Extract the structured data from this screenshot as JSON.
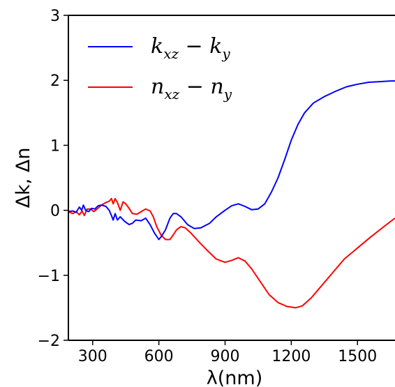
{
  "chart_data": {
    "type": "line",
    "xlabel": "λ(nm)",
    "ylabel": "Δk, Δn",
    "xlim": [
      190,
      1670
    ],
    "ylim": [
      -2,
      3
    ],
    "xticks": [
      300,
      600,
      900,
      1200,
      1500
    ],
    "xtick_labels": [
      "300",
      "600",
      "900",
      "1200",
      "1500"
    ],
    "yticks": [
      -2,
      -1,
      0,
      1,
      2,
      3
    ],
    "ytick_labels": [
      "−2",
      "−1",
      "0",
      "1",
      "2",
      "3"
    ],
    "legend_position": "top-left",
    "grid": false,
    "series": [
      {
        "name": "k_xz − k_y",
        "legend": {
          "main1": "k",
          "sub1": "xz",
          "op": " − ",
          "main2": "k",
          "sub2": "y"
        },
        "color": "#0000ff",
        "points": [
          [
            190,
            -0.02
          ],
          [
            210,
            -0.01
          ],
          [
            225,
            -0.03
          ],
          [
            240,
            0.05
          ],
          [
            250,
            0.0
          ],
          [
            258,
            0.08
          ],
          [
            268,
            0.0
          ],
          [
            282,
            -0.02
          ],
          [
            295,
            0.03
          ],
          [
            310,
            0.02
          ],
          [
            325,
            0.07
          ],
          [
            340,
            0.08
          ],
          [
            360,
            0.06
          ],
          [
            375,
            0.0
          ],
          [
            385,
            -0.08
          ],
          [
            393,
            -0.15
          ],
          [
            402,
            -0.05
          ],
          [
            412,
            -0.15
          ],
          [
            425,
            -0.1
          ],
          [
            445,
            -0.17
          ],
          [
            465,
            -0.22
          ],
          [
            480,
            -0.2
          ],
          [
            495,
            -0.15
          ],
          [
            520,
            -0.16
          ],
          [
            540,
            -0.12
          ],
          [
            560,
            -0.22
          ],
          [
            580,
            -0.35
          ],
          [
            600,
            -0.45
          ],
          [
            612,
            -0.4
          ],
          [
            630,
            -0.3
          ],
          [
            650,
            -0.12
          ],
          [
            665,
            -0.05
          ],
          [
            680,
            -0.05
          ],
          [
            700,
            -0.1
          ],
          [
            730,
            -0.22
          ],
          [
            760,
            -0.28
          ],
          [
            790,
            -0.27
          ],
          [
            830,
            -0.2
          ],
          [
            860,
            -0.1
          ],
          [
            900,
            0.0
          ],
          [
            930,
            0.07
          ],
          [
            960,
            0.1
          ],
          [
            990,
            0.06
          ],
          [
            1020,
            0.01
          ],
          [
            1050,
            0.02
          ],
          [
            1080,
            0.1
          ],
          [
            1110,
            0.28
          ],
          [
            1140,
            0.5
          ],
          [
            1170,
            0.78
          ],
          [
            1200,
            1.08
          ],
          [
            1230,
            1.32
          ],
          [
            1260,
            1.5
          ],
          [
            1300,
            1.65
          ],
          [
            1350,
            1.75
          ],
          [
            1400,
            1.83
          ],
          [
            1450,
            1.9
          ],
          [
            1500,
            1.94
          ],
          [
            1550,
            1.97
          ],
          [
            1600,
            1.98
          ],
          [
            1650,
            1.99
          ],
          [
            1670,
            1.99
          ]
        ]
      },
      {
        "name": "n_xz − n_y",
        "legend": {
          "main1": "n",
          "sub1": "xz",
          "op": " − ",
          "main2": "n",
          "sub2": "y"
        },
        "color": "#ff0000",
        "points": [
          [
            190,
            -0.02
          ],
          [
            210,
            -0.05
          ],
          [
            225,
            -0.02
          ],
          [
            240,
            -0.07
          ],
          [
            252,
            -0.01
          ],
          [
            262,
            -0.08
          ],
          [
            275,
            0.02
          ],
          [
            290,
            0.02
          ],
          [
            305,
            -0.02
          ],
          [
            320,
            0.02
          ],
          [
            340,
            0.08
          ],
          [
            360,
            0.12
          ],
          [
            375,
            0.14
          ],
          [
            385,
            0.18
          ],
          [
            393,
            0.1
          ],
          [
            402,
            0.18
          ],
          [
            412,
            0.12
          ],
          [
            425,
            0.0
          ],
          [
            438,
            0.13
          ],
          [
            450,
            0.1
          ],
          [
            465,
            0.03
          ],
          [
            480,
            -0.05
          ],
          [
            500,
            -0.06
          ],
          [
            520,
            -0.02
          ],
          [
            540,
            0.02
          ],
          [
            560,
            -0.01
          ],
          [
            575,
            -0.1
          ],
          [
            590,
            -0.25
          ],
          [
            610,
            -0.38
          ],
          [
            630,
            -0.45
          ],
          [
            650,
            -0.45
          ],
          [
            665,
            -0.38
          ],
          [
            680,
            -0.3
          ],
          [
            700,
            -0.25
          ],
          [
            720,
            -0.27
          ],
          [
            745,
            -0.35
          ],
          [
            780,
            -0.48
          ],
          [
            820,
            -0.62
          ],
          [
            860,
            -0.75
          ],
          [
            900,
            -0.8
          ],
          [
            930,
            -0.77
          ],
          [
            960,
            -0.73
          ],
          [
            990,
            -0.78
          ],
          [
            1020,
            -0.9
          ],
          [
            1060,
            -1.1
          ],
          [
            1100,
            -1.3
          ],
          [
            1140,
            -1.42
          ],
          [
            1180,
            -1.48
          ],
          [
            1220,
            -1.5
          ],
          [
            1250,
            -1.47
          ],
          [
            1290,
            -1.35
          ],
          [
            1340,
            -1.15
          ],
          [
            1390,
            -0.95
          ],
          [
            1440,
            -0.75
          ],
          [
            1500,
            -0.58
          ],
          [
            1560,
            -0.41
          ],
          [
            1620,
            -0.25
          ],
          [
            1670,
            -0.12
          ]
        ]
      }
    ]
  }
}
